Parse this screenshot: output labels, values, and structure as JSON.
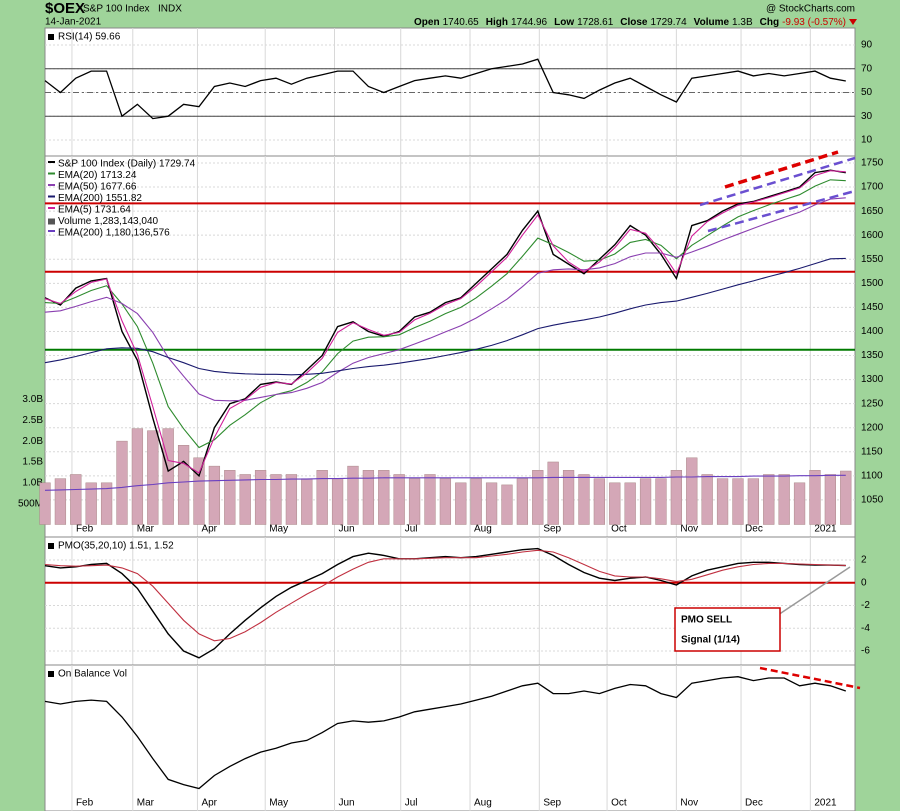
{
  "header": {
    "symbol": "$OEX",
    "name": "S&P 100 Index",
    "exchange": "INDX",
    "date": "14-Jan-2021",
    "watermark": "@ StockCharts.com",
    "quote": [
      {
        "label": "Open",
        "value": "1740.65"
      },
      {
        "label": "High",
        "value": "1744.96"
      },
      {
        "label": "Low",
        "value": "1728.61"
      },
      {
        "label": "Close",
        "value": "1729.74"
      },
      {
        "label": "Volume",
        "value": "1.3B"
      },
      {
        "label": "Chg",
        "value": "-9.93 (-0.57%)"
      }
    ]
  },
  "chart_data": [
    {
      "type": "line",
      "title": "RSI(14) 59.66",
      "color": "#000000",
      "xlim": [
        0,
        52.6
      ],
      "ylim": [
        -3.5,
        104.3
      ],
      "yticks": [
        90,
        70,
        50,
        30,
        10
      ],
      "grid": true,
      "hlines": [
        {
          "value": 70,
          "style": "solid",
          "color": "#444444"
        },
        {
          "value": 50,
          "style": "dashdot",
          "color": "#666666"
        },
        {
          "value": 30,
          "style": "solid",
          "color": "#444444"
        }
      ],
      "values": [
        60,
        50,
        62,
        68,
        68,
        30,
        40,
        28,
        30,
        40,
        38,
        55,
        58,
        55,
        60,
        62,
        57,
        62,
        65,
        68,
        68,
        55,
        50,
        55,
        60,
        62,
        64,
        62,
        66,
        70,
        72,
        74,
        78,
        50,
        48,
        45,
        52,
        58,
        62,
        55,
        48,
        42,
        62,
        64,
        66,
        68,
        64,
        66,
        64,
        66,
        68,
        62,
        59.66
      ]
    },
    {
      "type": "line",
      "xlim": [
        0,
        52.6
      ],
      "ylim": [
        973,
        1764.5
      ],
      "yticks": [
        1050,
        1100,
        1150,
        1200,
        1250,
        1300,
        1350,
        1400,
        1450,
        1500,
        1550,
        1600,
        1650,
        1700,
        1750
      ],
      "grid": true,
      "y2lim": [
        -300000000,
        8840000000
      ],
      "y2ticks": [
        {
          "value": 500000000,
          "label": "500M"
        },
        {
          "value": 1000000000,
          "label": "1.0B"
        },
        {
          "value": 1500000000,
          "label": "1.5B"
        },
        {
          "value": 2000000000,
          "label": "2.0B"
        },
        {
          "value": 2500000000,
          "label": "2.5B"
        },
        {
          "value": 3000000000,
          "label": "3.0B"
        }
      ],
      "xticks": [
        {
          "value": 1.75,
          "label": "Feb"
        },
        {
          "value": 5.7,
          "label": "Mar"
        },
        {
          "value": 9.9,
          "label": "Apr"
        },
        {
          "value": 14.3,
          "label": "May"
        },
        {
          "value": 18.8,
          "label": "Jun"
        },
        {
          "value": 23.1,
          "label": "Jul"
        },
        {
          "value": 27.6,
          "label": "Aug"
        },
        {
          "value": 32.1,
          "label": "Sep"
        },
        {
          "value": 36.5,
          "label": "Oct"
        },
        {
          "value": 41.0,
          "label": "Nov"
        },
        {
          "value": 45.2,
          "label": "Dec"
        },
        {
          "value": 49.7,
          "label": "2021"
        }
      ],
      "hlines": [
        {
          "value": 1666,
          "color": "#cc0000"
        },
        {
          "value": 1524,
          "color": "#cc0000"
        },
        {
          "value": 1362,
          "color": "#007a00"
        }
      ],
      "series": [
        {
          "name": "S&P 100 Index (Daily) 1729.74",
          "color": "#000000",
          "values": [
            1470,
            1455,
            1490,
            1505,
            1510,
            1400,
            1340,
            1220,
            1110,
            1130,
            1100,
            1200,
            1250,
            1260,
            1290,
            1295,
            1290,
            1320,
            1350,
            1410,
            1420,
            1400,
            1390,
            1400,
            1430,
            1440,
            1460,
            1470,
            1500,
            1530,
            1560,
            1610,
            1650,
            1560,
            1540,
            1520,
            1550,
            1580,
            1620,
            1600,
            1560,
            1510,
            1620,
            1630,
            1650,
            1665,
            1670,
            1680,
            1690,
            1700,
            1730,
            1735,
            1729.74
          ]
        },
        {
          "name": "EMA(20) 1713.24",
          "color": "#2e8b2e",
          "values": [
            1460,
            1458,
            1471,
            1485,
            1495,
            1457,
            1410,
            1334,
            1244,
            1198,
            1159,
            1175,
            1205,
            1227,
            1252,
            1269,
            1277,
            1294,
            1316,
            1354,
            1380,
            1388,
            1389,
            1393,
            1408,
            1421,
            1437,
            1450,
            1470,
            1494,
            1520,
            1556,
            1594,
            1580,
            1564,
            1546,
            1548,
            1561,
            1585,
            1591,
            1579,
            1551,
            1579,
            1599,
            1619,
            1638,
            1651,
            1663,
            1674,
            1684,
            1702,
            1715,
            1713.24
          ]
        },
        {
          "name": "EMA(50) 1677.66",
          "color": "#8a3fb0",
          "values": [
            1440,
            1443,
            1452,
            1462,
            1471,
            1458,
            1437,
            1398,
            1346,
            1307,
            1270,
            1257,
            1256,
            1257,
            1263,
            1269,
            1273,
            1282,
            1294,
            1315,
            1334,
            1346,
            1354,
            1362,
            1374,
            1386,
            1399,
            1412,
            1428,
            1447,
            1467,
            1493,
            1521,
            1528,
            1530,
            1528,
            1532,
            1541,
            1555,
            1563,
            1563,
            1554,
            1565,
            1577,
            1590,
            1602,
            1614,
            1626,
            1637,
            1648,
            1663,
            1675,
            1677.66
          ]
        },
        {
          "name": "EMA(200) 1551.82",
          "color": "#1a1a6e",
          "values": [
            1335,
            1341,
            1348,
            1356,
            1364,
            1366,
            1365,
            1358,
            1346,
            1335,
            1323,
            1317,
            1314,
            1312,
            1311,
            1311,
            1310,
            1311,
            1313,
            1318,
            1323,
            1327,
            1330,
            1334,
            1339,
            1344,
            1350,
            1356,
            1363,
            1371,
            1381,
            1393,
            1406,
            1413,
            1419,
            1424,
            1430,
            1438,
            1447,
            1455,
            1460,
            1463,
            1471,
            1479,
            1488,
            1497,
            1505,
            1514,
            1522,
            1531,
            1541,
            1551,
            1551.82
          ]
        },
        {
          "name": "EMA(5) 1731.64",
          "color": "#d0209a",
          "values": [
            1468,
            1458,
            1483,
            1502,
            1509,
            1422,
            1352,
            1244,
            1132,
            1126,
            1106,
            1180,
            1240,
            1258,
            1284,
            1294,
            1291,
            1314,
            1344,
            1398,
            1418,
            1404,
            1392,
            1398,
            1424,
            1438,
            1456,
            1468,
            1494,
            1524,
            1554,
            1600,
            1642,
            1578,
            1544,
            1524,
            1544,
            1574,
            1612,
            1604,
            1568,
            1520,
            1598,
            1628,
            1646,
            1662,
            1669,
            1678,
            1688,
            1698,
            1724,
            1734,
            1731.64
          ]
        },
        {
          "name": "Volume 1,283,143,040",
          "type": "bar",
          "axis": "y2",
          "color": "#d4a7b7",
          "values": [
            1000000000,
            1100000000,
            1200000000,
            1000000000,
            1000000000,
            2000000000,
            2300000000,
            2250000000,
            2300000000,
            1900000000,
            1600000000,
            1400000000,
            1300000000,
            1200000000,
            1300000000,
            1200000000,
            1200000000,
            1100000000,
            1300000000,
            1100000000,
            1400000000,
            1300000000,
            1300000000,
            1200000000,
            1100000000,
            1200000000,
            1100000000,
            1000000000,
            1100000000,
            1000000000,
            950000000,
            1100000000,
            1300000000,
            1500000000,
            1300000000,
            1200000000,
            1100000000,
            1000000000,
            1000000000,
            1100000000,
            1100000000,
            1300000000,
            1600000000,
            1200000000,
            1100000000,
            1100000000,
            1100000000,
            1200000000,
            1200000000,
            1000000000,
            1300000000,
            1200000000,
            1283143040
          ]
        },
        {
          "name": "EMA(200) 1,180,136,576",
          "axis": "y2",
          "color": "#6a3fc0",
          "values": [
            820000000,
            830000000,
            840000000,
            850000000,
            860000000,
            890000000,
            930000000,
            960000000,
            1000000000,
            1020000000,
            1040000000,
            1050000000,
            1060000000,
            1070000000,
            1080000000,
            1080000000,
            1090000000,
            1090000000,
            1100000000,
            1100000000,
            1110000000,
            1110000000,
            1120000000,
            1120000000,
            1120000000,
            1120000000,
            1120000000,
            1120000000,
            1120000000,
            1120000000,
            1120000000,
            1120000000,
            1120000000,
            1130000000,
            1130000000,
            1130000000,
            1130000000,
            1130000000,
            1130000000,
            1130000000,
            1130000000,
            1140000000,
            1140000000,
            1150000000,
            1150000000,
            1150000000,
            1160000000,
            1160000000,
            1160000000,
            1170000000,
            1170000000,
            1180000000,
            1180136576
          ]
        }
      ]
    },
    {
      "type": "line",
      "title": "PMO(35,20,10) 1.51, 1.52",
      "xlim": [
        0,
        52.6
      ],
      "ylim": [
        -7.23,
        4.02
      ],
      "yticks": [
        2,
        0,
        -2,
        -4,
        -6
      ],
      "grid": true,
      "hlines": [
        {
          "value": 0,
          "color": "#cc0000"
        }
      ],
      "annotation": [
        "PMO SELL",
        "Signal (1/14)"
      ],
      "series": [
        {
          "color": "#000000",
          "values": [
            1.5,
            1.3,
            1.4,
            1.6,
            1.7,
            0.8,
            -0.5,
            -2.5,
            -4.5,
            -6.0,
            -6.6,
            -5.8,
            -4.5,
            -3.3,
            -2.2,
            -1.2,
            -0.4,
            0.2,
            0.8,
            1.6,
            2.3,
            2.6,
            2.4,
            2.1,
            2.1,
            2.2,
            2.3,
            2.2,
            2.3,
            2.5,
            2.7,
            2.9,
            3.0,
            2.4,
            1.6,
            0.9,
            0.4,
            0.2,
            0.4,
            0.5,
            0.2,
            -0.2,
            0.6,
            1.1,
            1.4,
            1.7,
            1.8,
            1.8,
            1.7,
            1.6,
            1.55,
            1.55,
            1.51
          ]
        },
        {
          "color": "#c03040",
          "values": [
            1.6,
            1.5,
            1.45,
            1.5,
            1.55,
            1.3,
            0.8,
            -0.3,
            -1.8,
            -3.3,
            -4.5,
            -5.1,
            -4.9,
            -4.3,
            -3.5,
            -2.6,
            -1.8,
            -1.0,
            -0.3,
            0.5,
            1.2,
            1.8,
            2.1,
            2.1,
            2.1,
            2.15,
            2.2,
            2.2,
            2.2,
            2.35,
            2.5,
            2.7,
            2.85,
            2.7,
            2.2,
            1.6,
            1.0,
            0.6,
            0.5,
            0.5,
            0.35,
            0.1,
            0.3,
            0.7,
            1.1,
            1.4,
            1.6,
            1.7,
            1.7,
            1.65,
            1.6,
            1.55,
            1.52
          ]
        }
      ]
    },
    {
      "type": "line",
      "title": "On Balance Vol",
      "color": "#000000",
      "xlim": [
        0,
        52.6
      ],
      "ylim": [
        -12.3,
        100
      ],
      "xticks": [
        {
          "value": 1.75,
          "label": "Feb"
        },
        {
          "value": 5.7,
          "label": "Mar"
        },
        {
          "value": 9.9,
          "label": "Apr"
        },
        {
          "value": 14.3,
          "label": "May"
        },
        {
          "value": 18.8,
          "label": "Jun"
        },
        {
          "value": 23.1,
          "label": "Jul"
        },
        {
          "value": 27.6,
          "label": "Aug"
        },
        {
          "value": 32.1,
          "label": "Sep"
        },
        {
          "value": 36.5,
          "label": "Oct"
        },
        {
          "value": 41.0,
          "label": "Nov"
        },
        {
          "value": 45.2,
          "label": "Dec"
        },
        {
          "value": 49.7,
          "label": "2021"
        }
      ],
      "values": [
        72,
        70,
        72,
        73,
        72,
        60,
        45,
        28,
        12,
        8,
        5,
        15,
        22,
        28,
        33,
        36,
        40,
        42,
        48,
        55,
        57,
        56,
        57,
        60,
        64,
        66,
        68,
        70,
        73,
        76,
        80,
        84,
        86,
        78,
        78,
        80,
        78,
        82,
        85,
        84,
        78,
        75,
        86,
        88,
        90,
        91,
        88,
        90,
        90,
        84,
        86,
        84,
        80
      ]
    }
  ]
}
